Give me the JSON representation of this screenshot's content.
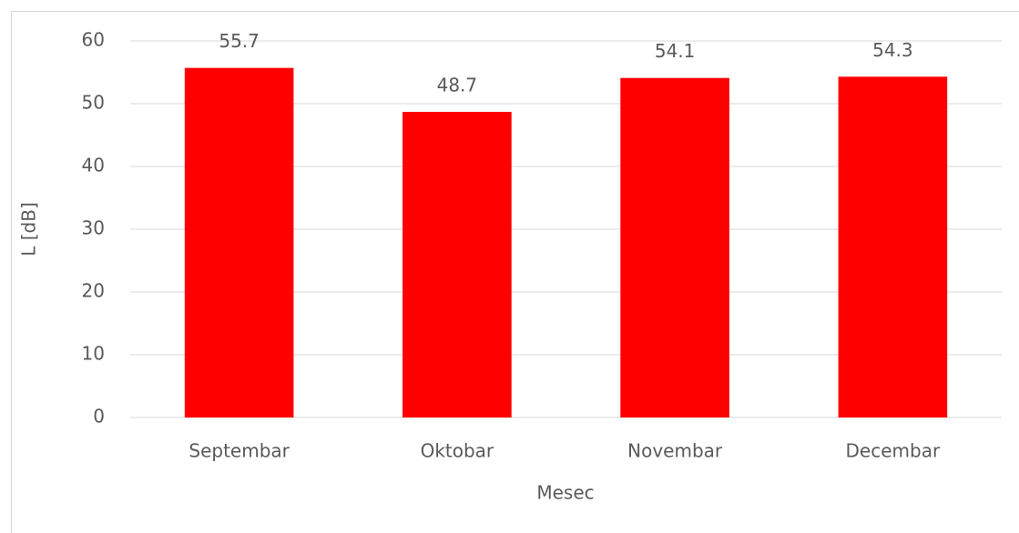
{
  "chart_data": {
    "type": "bar",
    "categories": [
      "Septembar",
      "Oktobar",
      "Novembar",
      "Decembar"
    ],
    "values": [
      55.7,
      48.7,
      54.1,
      54.3
    ],
    "color": "#ff0000",
    "xlabel": "Mesec",
    "ylabel": "L [dB]",
    "ylim": [
      0,
      60
    ],
    "yticks": [
      0,
      10,
      20,
      30,
      40,
      50,
      60
    ],
    "grid": true,
    "data_labels": true
  }
}
